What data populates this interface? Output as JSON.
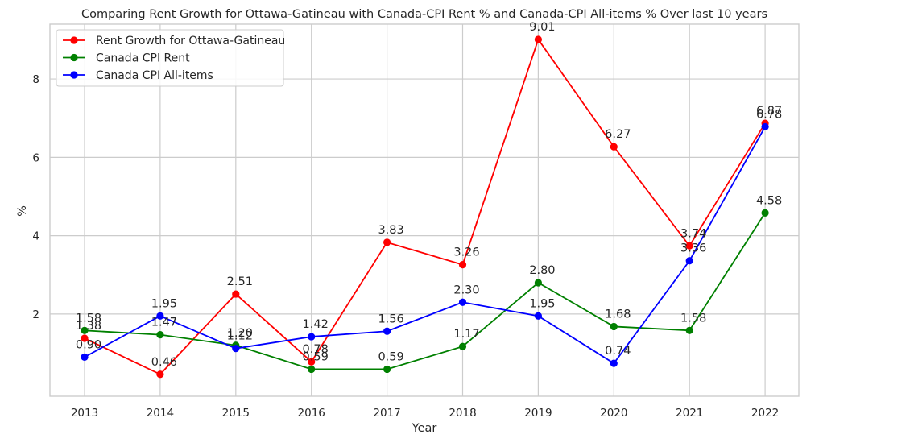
{
  "chart_data": {
    "type": "line",
    "title": "Comparing Rent Growth for Ottawa-Gatineau with Canada-CPI Rent % and Canada-CPI All-items % Over last 10 years",
    "xlabel": "Year",
    "ylabel": "%",
    "categories": [
      "2013",
      "2014",
      "2015",
      "2016",
      "2017",
      "2018",
      "2019",
      "2020",
      "2021",
      "2022"
    ],
    "ylim": [
      -0.1,
      9.4
    ],
    "yticks": [
      "2",
      "4",
      "6",
      "8"
    ],
    "grid": true,
    "legend_position": "top-left",
    "series": [
      {
        "name": "Rent Growth for Ottawa-Gatineau",
        "color": "#ff0000",
        "values": [
          1.38,
          0.46,
          2.51,
          0.78,
          3.83,
          3.26,
          9.01,
          6.27,
          3.74,
          6.87
        ],
        "labels": [
          "1.38",
          "0.46",
          "2.51",
          "0.78",
          "3.83",
          "3.26",
          "9.01",
          "6.27",
          "3.74",
          "6.87"
        ]
      },
      {
        "name": "Canada CPI Rent",
        "color": "#008000",
        "values": [
          1.58,
          1.47,
          1.2,
          0.59,
          0.59,
          1.17,
          2.8,
          1.68,
          1.58,
          4.58
        ],
        "labels": [
          "1.58",
          "1.47",
          "1.20",
          "0.59",
          "0.59",
          "1.17",
          "2.80",
          "1.68",
          "1.58",
          "4.58"
        ]
      },
      {
        "name": "Canada CPI All-items",
        "color": "#0000ff",
        "values": [
          0.9,
          1.95,
          1.12,
          1.42,
          1.56,
          2.3,
          1.95,
          0.74,
          3.36,
          6.78
        ],
        "labels": [
          "0.90",
          "1.95",
          "1.12",
          "1.42",
          "1.56",
          "2.30",
          "1.95",
          "0.74",
          "3.36",
          "6.78"
        ]
      }
    ]
  }
}
